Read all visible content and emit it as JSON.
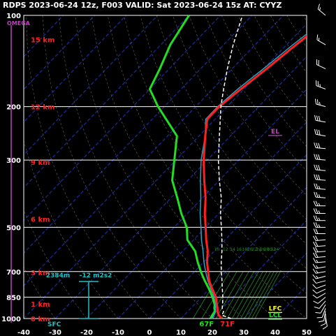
{
  "title": "RDPS 2023-06-24 12z, F003  VALID: Sat 2023-06-24 15z  AT: CYYZ",
  "colors": {
    "background": "#000000",
    "temperature": "#ff2020",
    "dewpoint": "#22dd22",
    "parcel": "#ffffff",
    "wetbulb": "#30a0c0",
    "isobar": "#ffffff",
    "height_label": "#ff2020",
    "omega": "#c040c0",
    "helicity": "#20c0c0",
    "lfc": "#ffff00",
    "lcl": "#22dd22",
    "el": "#c040c0",
    "mixing_ratio": "#228822",
    "isotherm": "#1c2ca0"
  },
  "chart_data": {
    "type": "line",
    "chart_kind": "skew-T log-P sounding",
    "station": "CYYZ",
    "x_ticks": [
      "-40",
      "-30",
      "-20",
      "-10",
      "0",
      "10",
      "20",
      "30",
      "40",
      "50"
    ],
    "x_range": [
      -40,
      50
    ],
    "pressure_range": [
      1000,
      100
    ],
    "pressure_labels": [
      "100",
      "200",
      "300",
      "500",
      "700",
      "850",
      "1000"
    ],
    "height_labels": [
      "15 km",
      "12 km",
      "9 km",
      "6 km",
      "3 km",
      "1 km",
      "0 km"
    ],
    "omega_label": "OMEGA",
    "mixing_ratio_labels": [
      "10",
      "12",
      "14",
      "16",
      "18",
      "20",
      "22",
      "24",
      "26",
      "28",
      "30",
      "32",
      "34"
    ],
    "series": [
      {
        "name": "temperature",
        "points": [
          [
            1000,
            23
          ],
          [
            975,
            21
          ],
          [
            950,
            19.6
          ],
          [
            925,
            18.5
          ],
          [
            900,
            17.2
          ],
          [
            850,
            14.6
          ],
          [
            800,
            11
          ],
          [
            750,
            7.4
          ],
          [
            700,
            4.3
          ],
          [
            650,
            1
          ],
          [
            600,
            -2
          ],
          [
            550,
            -6
          ],
          [
            500,
            -10
          ],
          [
            450,
            -14.5
          ],
          [
            400,
            -19
          ],
          [
            350,
            -24.8
          ],
          [
            300,
            -31.2
          ],
          [
            250,
            -38
          ],
          [
            220,
            -42.5
          ],
          [
            200,
            -42.5
          ],
          [
            175,
            -41
          ],
          [
            150,
            -39
          ],
          [
            125,
            -37
          ],
          [
            100,
            -34
          ]
        ]
      },
      {
        "name": "dewpoint",
        "points": [
          [
            1000,
            19.5
          ],
          [
            975,
            19
          ],
          [
            950,
            18.8
          ],
          [
            925,
            17.5
          ],
          [
            900,
            16.5
          ],
          [
            850,
            13.5
          ],
          [
            800,
            10
          ],
          [
            750,
            6
          ],
          [
            700,
            2
          ],
          [
            650,
            -2
          ],
          [
            600,
            -6
          ],
          [
            550,
            -12
          ],
          [
            500,
            -16
          ],
          [
            450,
            -22
          ],
          [
            400,
            -28
          ],
          [
            350,
            -35
          ],
          [
            300,
            -40.5
          ],
          [
            250,
            -47
          ],
          [
            200,
            -62
          ],
          [
            175,
            -70
          ],
          [
            150,
            -73
          ],
          [
            125,
            -77
          ],
          [
            100,
            -80
          ]
        ]
      },
      {
        "name": "wetbulb",
        "points": [
          [
            1000,
            20
          ],
          [
            975,
            19.5
          ],
          [
            950,
            19
          ],
          [
            925,
            17.9
          ],
          [
            900,
            16.8
          ],
          [
            850,
            14
          ],
          [
            800,
            10.6
          ],
          [
            750,
            7
          ],
          [
            700,
            3.5
          ],
          [
            650,
            0
          ],
          [
            600,
            -3.5
          ],
          [
            550,
            -7.5
          ],
          [
            500,
            -11.5
          ],
          [
            450,
            -16
          ],
          [
            400,
            -20.5
          ],
          [
            350,
            -26
          ],
          [
            300,
            -32
          ],
          [
            250,
            -38
          ],
          [
            220,
            -43
          ],
          [
            200,
            -43
          ],
          [
            175,
            -42
          ],
          [
            150,
            -40
          ],
          [
            125,
            -38
          ],
          [
            100,
            -35
          ]
        ]
      },
      {
        "name": "parcel",
        "points": [
          [
            1000,
            26
          ],
          [
            975,
            22
          ],
          [
            950,
            21.5
          ],
          [
            925,
            20
          ],
          [
            900,
            19
          ],
          [
            850,
            16.8
          ],
          [
            800,
            14.2
          ],
          [
            750,
            11.5
          ],
          [
            700,
            8.5
          ],
          [
            650,
            5.5
          ],
          [
            600,
            2.5
          ],
          [
            550,
            -1
          ],
          [
            500,
            -5
          ],
          [
            450,
            -9.5
          ],
          [
            400,
            -14
          ],
          [
            350,
            -20
          ],
          [
            300,
            -26.5
          ],
          [
            250,
            -33.5
          ],
          [
            200,
            -42
          ],
          [
            175,
            -46.5
          ],
          [
            150,
            -51.5
          ],
          [
            125,
            -57
          ],
          [
            100,
            -63
          ]
        ]
      }
    ],
    "surface": {
      "temp_label": "71F",
      "dewpoint_label": "67F",
      "sfc_label": "SFC"
    },
    "helicity": {
      "height_label": "2384m",
      "value_label": "-12 m2s2",
      "top_pressure": 755
    },
    "levels": {
      "lfc": "LFC",
      "lcl": "LCL",
      "el": "EL",
      "lfc_pressure": 940,
      "lcl_pressure": 990,
      "el_pressure": 245
    },
    "winds": [
      {
        "p": 985,
        "dir": 170,
        "spd": 10
      },
      {
        "p": 965,
        "dir": 180,
        "spd": 10
      },
      {
        "p": 945,
        "dir": 190,
        "spd": 10
      },
      {
        "p": 925,
        "dir": 200,
        "spd": 10
      },
      {
        "p": 900,
        "dir": 210,
        "spd": 10
      },
      {
        "p": 875,
        "dir": 220,
        "spd": 10
      },
      {
        "p": 850,
        "dir": 230,
        "spd": 10
      },
      {
        "p": 825,
        "dir": 240,
        "spd": 10
      },
      {
        "p": 800,
        "dir": 245,
        "spd": 10
      },
      {
        "p": 775,
        "dir": 250,
        "spd": 10
      },
      {
        "p": 750,
        "dir": 255,
        "spd": 10
      },
      {
        "p": 725,
        "dir": 255,
        "spd": 15
      },
      {
        "p": 700,
        "dir": 260,
        "spd": 15
      },
      {
        "p": 675,
        "dir": 260,
        "spd": 15
      },
      {
        "p": 650,
        "dir": 265,
        "spd": 15
      },
      {
        "p": 625,
        "dir": 265,
        "spd": 20
      },
      {
        "p": 600,
        "dir": 265,
        "spd": 20
      },
      {
        "p": 575,
        "dir": 265,
        "spd": 20
      },
      {
        "p": 550,
        "dir": 265,
        "spd": 20
      },
      {
        "p": 525,
        "dir": 270,
        "spd": 20
      },
      {
        "p": 500,
        "dir": 270,
        "spd": 25
      },
      {
        "p": 475,
        "dir": 270,
        "spd": 25
      },
      {
        "p": 450,
        "dir": 270,
        "spd": 25
      },
      {
        "p": 425,
        "dir": 270,
        "spd": 25
      },
      {
        "p": 400,
        "dir": 275,
        "spd": 25
      },
      {
        "p": 375,
        "dir": 275,
        "spd": 25
      },
      {
        "p": 350,
        "dir": 275,
        "spd": 30
      },
      {
        "p": 325,
        "dir": 275,
        "spd": 30
      },
      {
        "p": 300,
        "dir": 275,
        "spd": 30
      },
      {
        "p": 275,
        "dir": 275,
        "spd": 30
      },
      {
        "p": 250,
        "dir": 280,
        "spd": 30
      },
      {
        "p": 225,
        "dir": 280,
        "spd": 30
      },
      {
        "p": 200,
        "dir": 285,
        "spd": 25
      },
      {
        "p": 175,
        "dir": 290,
        "spd": 25
      },
      {
        "p": 150,
        "dir": 295,
        "spd": 20
      },
      {
        "p": 125,
        "dir": 300,
        "spd": 15
      },
      {
        "p": 100,
        "dir": 310,
        "spd": 15
      }
    ]
  }
}
